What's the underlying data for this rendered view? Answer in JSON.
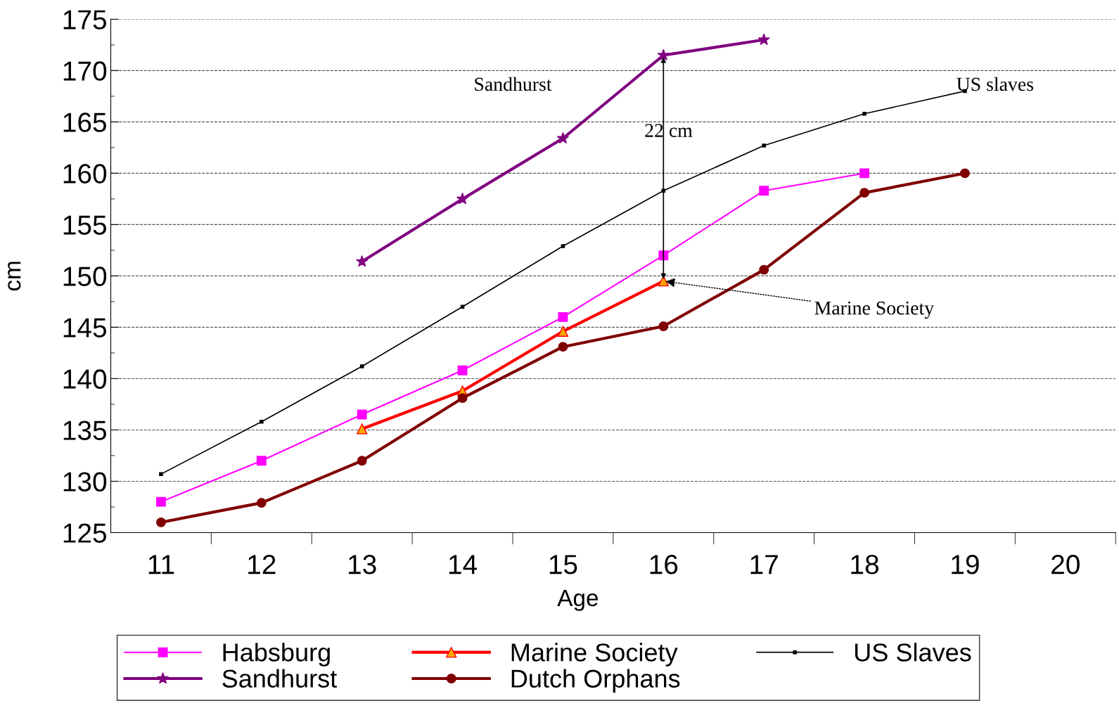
{
  "chart_data": {
    "type": "line",
    "xlabel": "Age",
    "ylabel": "cm",
    "categories": [
      "11",
      "12",
      "13",
      "14",
      "15",
      "16",
      "17",
      "18",
      "19",
      "20"
    ],
    "series": [
      {
        "name": "Habsburg",
        "color": "#ff00ff",
        "marker": "square",
        "values": [
          128,
          132,
          136.5,
          140.8,
          146,
          152,
          158.3,
          160,
          null,
          null
        ]
      },
      {
        "name": "Marine Society",
        "color": "#ff0000",
        "marker": "triangle",
        "values": [
          null,
          null,
          135.1,
          138.8,
          144.6,
          149.5,
          null,
          null,
          null,
          null
        ]
      },
      {
        "name": "US Slaves",
        "color": "#000000",
        "marker": "square",
        "values": [
          130.7,
          135.8,
          141.2,
          147,
          152.9,
          158.3,
          162.7,
          165.8,
          168,
          null
        ]
      },
      {
        "name": "Sandhurst",
        "color": "#800080",
        "marker": "star",
        "values": [
          null,
          null,
          151.4,
          157.5,
          163.4,
          171.5,
          173,
          null,
          null,
          null
        ]
      },
      {
        "name": "Dutch Orphans",
        "color": "#800000",
        "marker": "circle",
        "values": [
          126,
          127.9,
          132,
          138.1,
          143.1,
          145.1,
          150.6,
          158.1,
          160,
          null
        ]
      }
    ],
    "ylim": [
      125,
      175
    ],
    "yticks": [
      125,
      130,
      135,
      140,
      145,
      150,
      155,
      160,
      165,
      170,
      175
    ],
    "grid": "y",
    "legend": "bottom",
    "annotations": [
      "Sandhurst",
      "US slaves",
      "22 cm",
      {
        "text": "Marine Society",
        "x": "16",
        "y": 149.5
      }
    ]
  }
}
